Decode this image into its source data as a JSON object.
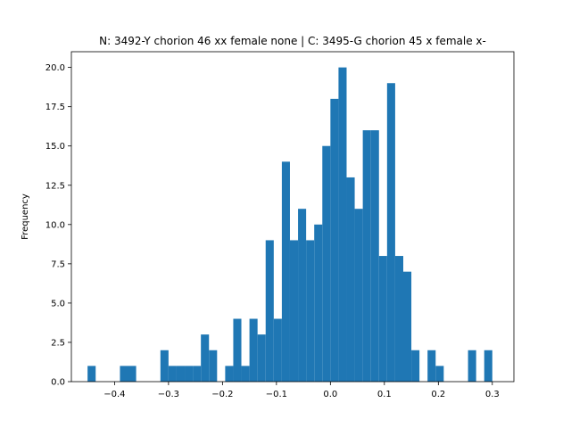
{
  "chart_data": {
    "type": "bar",
    "title": "N: 3492-Y chorion 46 xx female none | C: 3495-G chorion 45 x female x-",
    "xlabel": "",
    "ylabel": "Frequency",
    "xlim": [
      -0.48,
      0.34
    ],
    "ylim": [
      0,
      21
    ],
    "x_ticks": [
      "-0.4",
      "-0.3",
      "-0.2",
      "-0.1",
      "0.0",
      "0.1",
      "0.2",
      "0.3"
    ],
    "y_ticks": [
      "0.0",
      "2.5",
      "5.0",
      "7.5",
      "10.0",
      "12.5",
      "15.0",
      "17.5",
      "20.0"
    ],
    "bar_color": "#1f77b4",
    "bin_width": 0.015,
    "bins": [
      {
        "x0": -0.45,
        "count": 1
      },
      {
        "x0": -0.435,
        "count": 0
      },
      {
        "x0": -0.42,
        "count": 0
      },
      {
        "x0": -0.405,
        "count": 0
      },
      {
        "x0": -0.39,
        "count": 1
      },
      {
        "x0": -0.375,
        "count": 1
      },
      {
        "x0": -0.36,
        "count": 0
      },
      {
        "x0": -0.345,
        "count": 0
      },
      {
        "x0": -0.33,
        "count": 0
      },
      {
        "x0": -0.315,
        "count": 2
      },
      {
        "x0": -0.3,
        "count": 1
      },
      {
        "x0": -0.285,
        "count": 1
      },
      {
        "x0": -0.27,
        "count": 1
      },
      {
        "x0": -0.255,
        "count": 1
      },
      {
        "x0": -0.24,
        "count": 3
      },
      {
        "x0": -0.225,
        "count": 2
      },
      {
        "x0": -0.21,
        "count": 0
      },
      {
        "x0": -0.195,
        "count": 1
      },
      {
        "x0": -0.18,
        "count": 4
      },
      {
        "x0": -0.165,
        "count": 1
      },
      {
        "x0": -0.15,
        "count": 4
      },
      {
        "x0": -0.135,
        "count": 3
      },
      {
        "x0": -0.12,
        "count": 9
      },
      {
        "x0": -0.105,
        "count": 4
      },
      {
        "x0": -0.09,
        "count": 14
      },
      {
        "x0": -0.075,
        "count": 9
      },
      {
        "x0": -0.06,
        "count": 11
      },
      {
        "x0": -0.045,
        "count": 9
      },
      {
        "x0": -0.03,
        "count": 10
      },
      {
        "x0": -0.015,
        "count": 15
      },
      {
        "x0": 0.0,
        "count": 18
      },
      {
        "x0": 0.015,
        "count": 20
      },
      {
        "x0": 0.03,
        "count": 13
      },
      {
        "x0": 0.045,
        "count": 11
      },
      {
        "x0": 0.06,
        "count": 16
      },
      {
        "x0": 0.075,
        "count": 16
      },
      {
        "x0": 0.09,
        "count": 8
      },
      {
        "x0": 0.105,
        "count": 19
      },
      {
        "x0": 0.12,
        "count": 8
      },
      {
        "x0": 0.135,
        "count": 7
      },
      {
        "x0": 0.15,
        "count": 2
      },
      {
        "x0": 0.165,
        "count": 0
      },
      {
        "x0": 0.18,
        "count": 2
      },
      {
        "x0": 0.195,
        "count": 1
      },
      {
        "x0": 0.21,
        "count": 0
      },
      {
        "x0": 0.225,
        "count": 0
      },
      {
        "x0": 0.24,
        "count": 0
      },
      {
        "x0": 0.255,
        "count": 2
      },
      {
        "x0": 0.27,
        "count": 0
      },
      {
        "x0": 0.285,
        "count": 2
      }
    ]
  }
}
